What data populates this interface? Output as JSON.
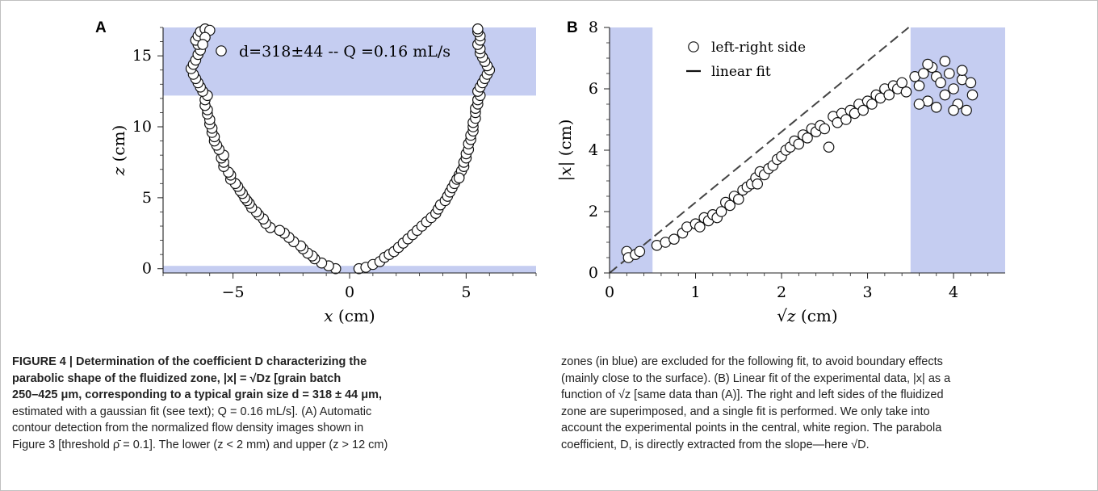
{
  "figure": {
    "panel_a_letter": "A",
    "panel_b_letter": "B"
  },
  "colors": {
    "excluded_zone": "#c5cdf1",
    "marker_fill": "#ffffff",
    "marker_edge": "#111111",
    "fit_line": "#444444"
  },
  "chart_data": [
    {
      "panel": "A",
      "type": "scatter",
      "xlabel_var": "x",
      "xlabel_unit": "(cm)",
      "ylabel_var": "z",
      "ylabel_unit": "(cm)",
      "xlim": [
        -8,
        8
      ],
      "ylim": [
        -0.3,
        17
      ],
      "xticks": [
        -5,
        0,
        5
      ],
      "xtick_labels": [
        "−5",
        "0",
        "5"
      ],
      "yticks": [
        0,
        5,
        10,
        15
      ],
      "ytick_labels": [
        "0",
        "5",
        "10",
        "15"
      ],
      "legend_text": "d=318±44 -- Q =0.16 mL/s",
      "legend_location": "top-center",
      "grid": false,
      "shaded_regions": [
        {
          "axis": "y",
          "from": 12.2,
          "to": 17
        },
        {
          "axis": "y",
          "from": -0.3,
          "to": 0.2
        }
      ],
      "series": [
        {
          "marker": "open-circle",
          "points": [
            [
              -0.6,
              0.0
            ],
            [
              -0.9,
              0.2
            ],
            [
              -1.2,
              0.4
            ],
            [
              -1.5,
              0.7
            ],
            [
              -1.6,
              0.9
            ],
            [
              -1.8,
              1.1
            ],
            [
              -2.0,
              1.4
            ],
            [
              -2.1,
              1.6
            ],
            [
              -2.4,
              1.9
            ],
            [
              -2.6,
              2.2
            ],
            [
              -2.8,
              2.5
            ],
            [
              -3.0,
              2.7
            ],
            [
              -3.4,
              2.9
            ],
            [
              -3.6,
              3.2
            ],
            [
              -3.7,
              3.5
            ],
            [
              -3.9,
              3.8
            ],
            [
              -4.0,
              4.0
            ],
            [
              -4.2,
              4.3
            ],
            [
              -4.3,
              4.6
            ],
            [
              -4.4,
              4.8
            ],
            [
              -4.5,
              5.0
            ],
            [
              -4.6,
              5.3
            ],
            [
              -4.7,
              5.5
            ],
            [
              -4.8,
              5.8
            ],
            [
              -4.9,
              6.0
            ],
            [
              -5.1,
              6.3
            ],
            [
              -5.1,
              6.6
            ],
            [
              -5.2,
              6.8
            ],
            [
              -5.4,
              7.2
            ],
            [
              -5.4,
              7.5
            ],
            [
              -5.5,
              7.8
            ],
            [
              -5.4,
              8.0
            ],
            [
              -5.6,
              8.4
            ],
            [
              -5.7,
              8.7
            ],
            [
              -5.8,
              9.0
            ],
            [
              -5.8,
              9.3
            ],
            [
              -5.9,
              9.6
            ],
            [
              -5.9,
              9.9
            ],
            [
              -6.0,
              10.2
            ],
            [
              -6.0,
              10.5
            ],
            [
              -6.1,
              10.9
            ],
            [
              -6.1,
              11.2
            ],
            [
              -6.2,
              11.5
            ],
            [
              -6.2,
              11.9
            ],
            [
              -6.1,
              12.2
            ],
            [
              -6.3,
              12.5
            ],
            [
              -6.4,
              12.8
            ],
            [
              -6.5,
              13.1
            ],
            [
              -6.6,
              13.4
            ],
            [
              -6.7,
              13.7
            ],
            [
              -6.8,
              14.1
            ],
            [
              -6.7,
              14.4
            ],
            [
              -6.6,
              14.7
            ],
            [
              -6.5,
              15.1
            ],
            [
              -6.4,
              15.4
            ],
            [
              -6.5,
              15.8
            ],
            [
              -6.6,
              16.1
            ],
            [
              -6.5,
              16.4
            ],
            [
              -6.4,
              16.7
            ],
            [
              -6.2,
              16.9
            ],
            [
              -6.0,
              16.8
            ],
            [
              -6.2,
              16.3
            ],
            [
              -6.3,
              15.8
            ],
            [
              0.4,
              0.0
            ],
            [
              0.7,
              0.1
            ],
            [
              1.0,
              0.3
            ],
            [
              1.3,
              0.5
            ],
            [
              1.5,
              0.8
            ],
            [
              1.7,
              1.0
            ],
            [
              1.9,
              1.2
            ],
            [
              2.1,
              1.5
            ],
            [
              2.3,
              1.8
            ],
            [
              2.5,
              2.1
            ],
            [
              2.7,
              2.4
            ],
            [
              2.9,
              2.7
            ],
            [
              3.1,
              3.0
            ],
            [
              3.3,
              3.3
            ],
            [
              3.5,
              3.6
            ],
            [
              3.7,
              3.9
            ],
            [
              3.8,
              4.2
            ],
            [
              3.9,
              4.5
            ],
            [
              4.1,
              4.8
            ],
            [
              4.2,
              5.1
            ],
            [
              4.3,
              5.4
            ],
            [
              4.4,
              5.7
            ],
            [
              4.5,
              6.0
            ],
            [
              4.6,
              6.3
            ],
            [
              4.7,
              6.6
            ],
            [
              4.8,
              6.9
            ],
            [
              4.9,
              7.2
            ],
            [
              4.9,
              7.5
            ],
            [
              5.0,
              7.8
            ],
            [
              5.0,
              8.1
            ],
            [
              5.1,
              8.4
            ],
            [
              5.1,
              8.8
            ],
            [
              5.2,
              9.1
            ],
            [
              5.2,
              9.4
            ],
            [
              5.3,
              9.7
            ],
            [
              5.3,
              10.0
            ],
            [
              5.3,
              10.3
            ],
            [
              5.4,
              10.6
            ],
            [
              5.4,
              11.0
            ],
            [
              5.4,
              11.3
            ],
            [
              5.5,
              11.6
            ],
            [
              5.5,
              11.9
            ],
            [
              5.6,
              12.2
            ],
            [
              5.5,
              12.5
            ],
            [
              5.6,
              12.8
            ],
            [
              5.7,
              13.1
            ],
            [
              5.8,
              13.4
            ],
            [
              5.9,
              13.7
            ],
            [
              6.0,
              14.0
            ],
            [
              5.9,
              14.3
            ],
            [
              5.8,
              14.6
            ],
            [
              5.7,
              14.9
            ],
            [
              5.6,
              15.2
            ],
            [
              5.6,
              15.5
            ],
            [
              5.5,
              15.8
            ],
            [
              5.6,
              16.1
            ],
            [
              5.6,
              16.4
            ],
            [
              5.5,
              16.7
            ],
            [
              5.5,
              16.9
            ],
            [
              4.7,
              6.4
            ]
          ]
        }
      ]
    },
    {
      "panel": "B",
      "type": "scatter",
      "xlabel_var": "√z",
      "xlabel_unit": "(cm)",
      "ylabel_var": "|x|",
      "ylabel_unit": "(cm)",
      "xlim": [
        0,
        4.6
      ],
      "ylim": [
        0,
        8
      ],
      "xticks": [
        0,
        1,
        2,
        3,
        4
      ],
      "xtick_labels": [
        "0",
        "1",
        "2",
        "3",
        "4"
      ],
      "yticks": [
        0,
        2,
        4,
        6,
        8
      ],
      "ytick_labels": [
        "0",
        "2",
        "4",
        "6",
        "8"
      ],
      "legend_location": "top-left",
      "grid": false,
      "shaded_regions": [
        {
          "axis": "x",
          "from": 0,
          "to": 0.5
        },
        {
          "axis": "x",
          "from": 3.5,
          "to": 4.6
        }
      ],
      "fit_slope": 2.3,
      "series": [
        {
          "name": "left-right side",
          "marker": "open-circle",
          "points": [
            [
              0.2,
              0.7
            ],
            [
              0.22,
              0.5
            ],
            [
              0.3,
              0.6
            ],
            [
              0.35,
              0.7
            ],
            [
              0.55,
              0.9
            ],
            [
              0.65,
              1.0
            ],
            [
              0.75,
              1.1
            ],
            [
              0.85,
              1.3
            ],
            [
              0.9,
              1.5
            ],
            [
              1.0,
              1.6
            ],
            [
              1.05,
              1.5
            ],
            [
              1.1,
              1.8
            ],
            [
              1.15,
              1.7
            ],
            [
              1.2,
              1.9
            ],
            [
              1.25,
              1.8
            ],
            [
              1.3,
              2.0
            ],
            [
              1.35,
              2.3
            ],
            [
              1.4,
              2.2
            ],
            [
              1.45,
              2.5
            ],
            [
              1.5,
              2.4
            ],
            [
              1.55,
              2.7
            ],
            [
              1.6,
              2.8
            ],
            [
              1.65,
              2.9
            ],
            [
              1.7,
              3.1
            ],
            [
              1.72,
              2.9
            ],
            [
              1.75,
              3.3
            ],
            [
              1.8,
              3.2
            ],
            [
              1.85,
              3.4
            ],
            [
              1.9,
              3.5
            ],
            [
              1.95,
              3.7
            ],
            [
              2.0,
              3.8
            ],
            [
              2.05,
              4.0
            ],
            [
              2.1,
              4.1
            ],
            [
              2.15,
              4.3
            ],
            [
              2.2,
              4.2
            ],
            [
              2.25,
              4.5
            ],
            [
              2.3,
              4.4
            ],
            [
              2.35,
              4.7
            ],
            [
              2.4,
              4.6
            ],
            [
              2.45,
              4.8
            ],
            [
              2.5,
              4.7
            ],
            [
              2.55,
              4.1
            ],
            [
              2.6,
              5.1
            ],
            [
              2.65,
              4.9
            ],
            [
              2.7,
              5.2
            ],
            [
              2.75,
              5.0
            ],
            [
              2.8,
              5.3
            ],
            [
              2.85,
              5.2
            ],
            [
              2.9,
              5.5
            ],
            [
              2.95,
              5.3
            ],
            [
              3.0,
              5.6
            ],
            [
              3.05,
              5.5
            ],
            [
              3.1,
              5.8
            ],
            [
              3.15,
              5.7
            ],
            [
              3.2,
              6.0
            ],
            [
              3.25,
              5.8
            ],
            [
              3.3,
              6.1
            ],
            [
              3.35,
              6.0
            ],
            [
              3.4,
              6.2
            ],
            [
              3.45,
              5.9
            ],
            [
              3.55,
              6.4
            ],
            [
              3.6,
              6.1
            ],
            [
              3.65,
              6.5
            ],
            [
              3.7,
              5.6
            ],
            [
              3.75,
              6.7
            ],
            [
              3.8,
              6.4
            ],
            [
              3.85,
              6.2
            ],
            [
              3.9,
              5.8
            ],
            [
              3.95,
              6.5
            ],
            [
              4.0,
              6.0
            ],
            [
              4.05,
              5.5
            ],
            [
              4.1,
              6.3
            ],
            [
              4.15,
              5.3
            ],
            [
              4.2,
              6.2
            ],
            [
              4.22,
              5.8
            ],
            [
              3.6,
              5.5
            ],
            [
              3.7,
              6.8
            ],
            [
              3.8,
              5.4
            ],
            [
              3.9,
              6.9
            ],
            [
              4.0,
              5.3
            ],
            [
              4.1,
              6.6
            ]
          ]
        },
        {
          "name": "linear fit",
          "marker": "line"
        }
      ]
    }
  ],
  "caption": {
    "left_lines": [
      "FIGURE 4 |  Determination of the coefficient D characterizing the",
      "parabolic shape of the fluidized zone, |x| = √Dz [grain batch",
      "250–425 μm, corresponding to a typical grain size d = 318 ± 44 μm,",
      "estimated with a gaussian fit (see text); Q = 0.16 mL/s]. (A) Automatic",
      "contour detection from the normalized flow density images shown in",
      "Figure 3 [threshold ρ̄ = 0.1]. The lower (z < 2 mm) and upper (z > 12 cm)"
    ],
    "right_lines": [
      "zones (in blue) are excluded for the following fit, to avoid boundary effects",
      "(mainly close to the surface). (B) Linear fit of the experimental data, |x| as a",
      "function of √z [same data than (A)]. The right and left sides of the fluidized",
      "zone are superimposed, and a single fit is performed. We only take into",
      "account the experimental points in the central, white region. The parabola",
      "coefficient, D, is directly extracted from the slope—here √D."
    ]
  }
}
